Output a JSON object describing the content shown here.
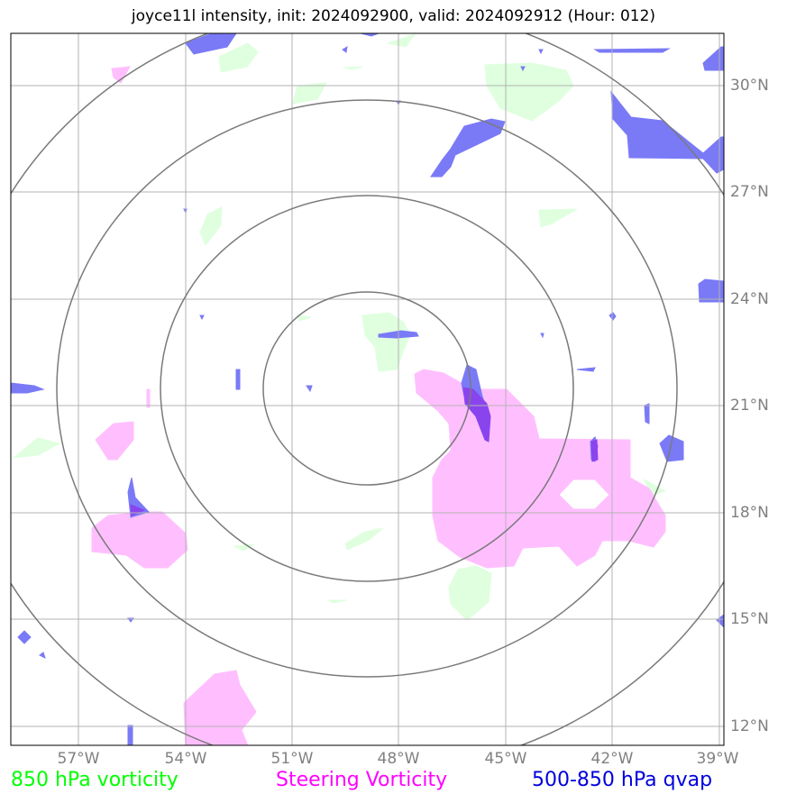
{
  "title": "joyce11l intensity, init: 2024092900, valid: 2024092912 (Hour: 012)",
  "longitude_labels": [
    "57°W",
    "54°W",
    "51°W",
    "48°W",
    "45°W",
    "42°W",
    "39°W"
  ],
  "latitude_labels": [
    "30°N",
    "27°N",
    "24°N",
    "21°N",
    "18°N",
    "15°N",
    "12°N"
  ],
  "legend": {
    "vorticity_850": {
      "label": "850 hPa vorticity",
      "color": "#00ff00"
    },
    "steering_vorticity": {
      "label": "Steering Vorticity",
      "color": "#ff00ff"
    },
    "qvap": {
      "label": "500-850 hPa qvap",
      "color": "#0000dd"
    }
  },
  "colors": {
    "vorticity_fill": "#dfffdf",
    "steering_fill": "#ffbfff",
    "qvap_fill": "#7a7af7",
    "overlap_fill": "#8a44ee",
    "grid": "#b3b3b3",
    "range_rings": "#7a7a7a"
  }
}
